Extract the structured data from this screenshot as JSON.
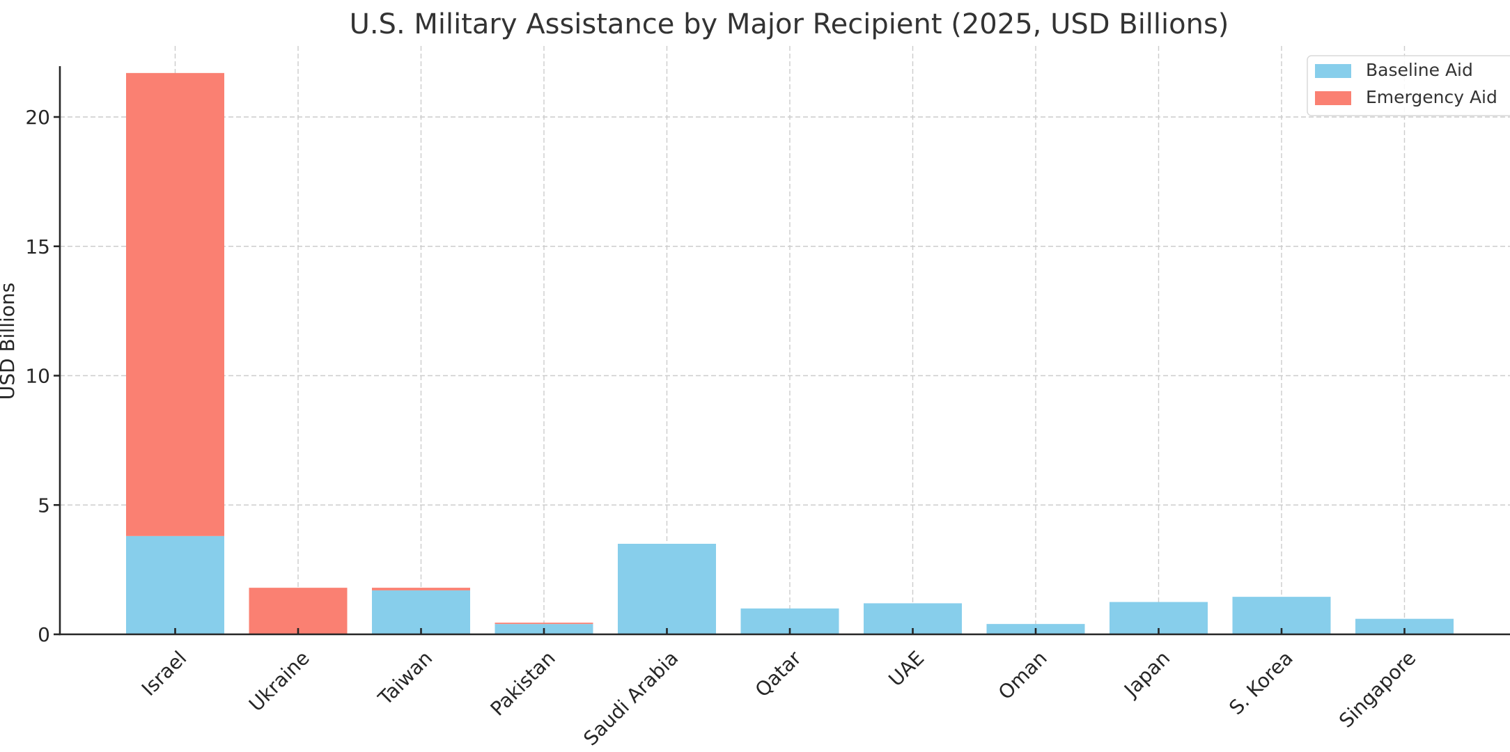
{
  "chart_data": {
    "type": "bar",
    "stacked": true,
    "title": "U.S. Military Assistance by Major Recipient (2025, USD Billions)",
    "xlabel": "",
    "ylabel": "USD Billions",
    "ylim": [
      0,
      22
    ],
    "yticks": [
      0,
      5,
      10,
      15,
      20
    ],
    "grid": true,
    "legend_position": "top-right",
    "categories": [
      "Israel",
      "Ukraine",
      "Taiwan",
      "Pakistan",
      "Saudi Arabia",
      "Qatar",
      "UAE",
      "Oman",
      "Japan",
      "S. Korea",
      "Singapore"
    ],
    "series": [
      {
        "name": "Baseline Aid",
        "color": "#87CEEB",
        "values": [
          3.8,
          0,
          1.7,
          0.4,
          3.5,
          1.0,
          1.2,
          0.4,
          1.25,
          1.45,
          0.6
        ]
      },
      {
        "name": "Emergency Aid",
        "color": "#FA8072",
        "values": [
          17.9,
          1.8,
          0.1,
          0.05,
          0,
          0,
          0,
          0,
          0,
          0,
          0
        ]
      }
    ]
  }
}
